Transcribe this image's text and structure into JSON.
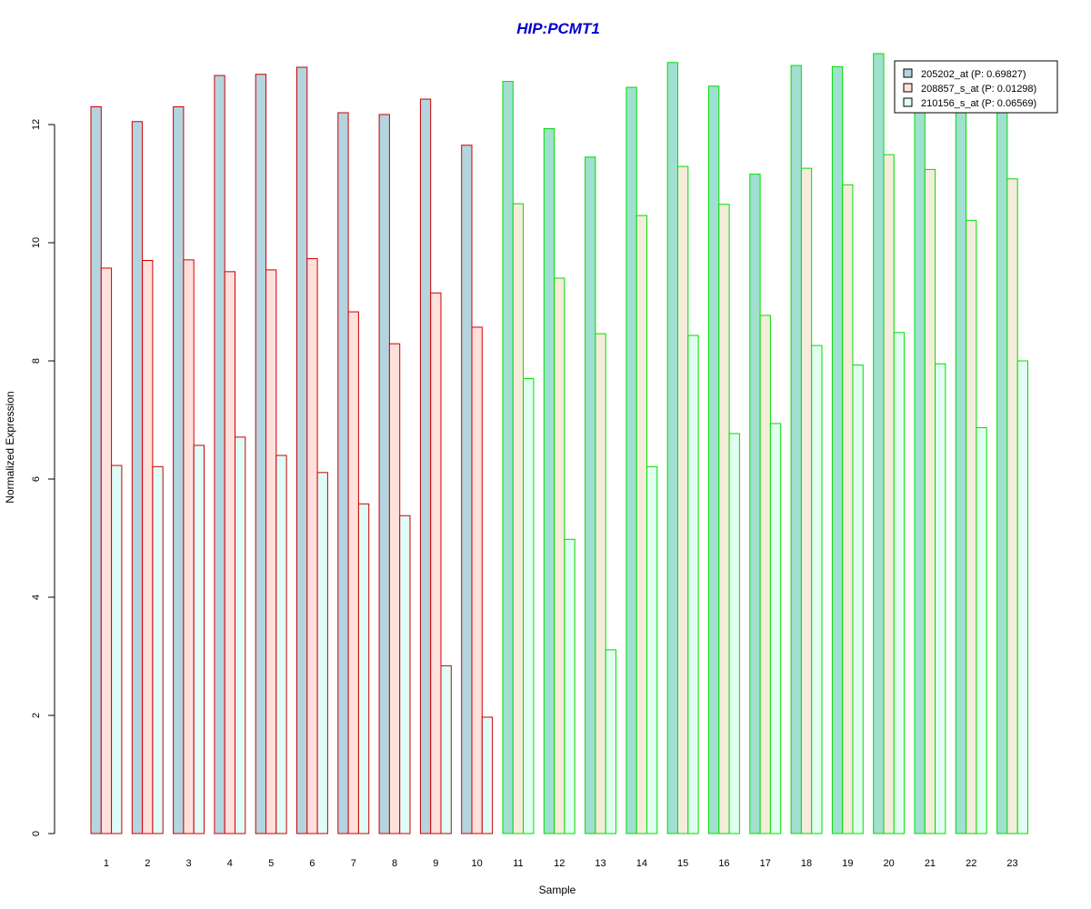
{
  "chart_data": {
    "type": "bar",
    "title": "HIP:PCMT1",
    "xlabel": "Sample",
    "ylabel": "Normalized Expression",
    "ylim": [
      0,
      13.2
    ],
    "yticks": [
      "0",
      "2",
      "4",
      "6",
      "8",
      "10",
      "12"
    ],
    "grid": false,
    "legend_position": "top-right",
    "categories": [
      "1",
      "2",
      "3",
      "4",
      "5",
      "6",
      "7",
      "8",
      "9",
      "10",
      "11",
      "12",
      "13",
      "14",
      "15",
      "16",
      "17",
      "18",
      "19",
      "20",
      "21",
      "22",
      "23"
    ],
    "group_outline_colors": [
      "#cc0000",
      "#cc0000",
      "#cc0000",
      "#cc0000",
      "#cc0000",
      "#cc0000",
      "#cc0000",
      "#cc0000",
      "#cc0000",
      "#cc0000",
      "#00dd00",
      "#00dd00",
      "#00dd00",
      "#00dd00",
      "#00dd00",
      "#00dd00",
      "#00dd00",
      "#00dd00",
      "#00dd00",
      "#00dd00",
      "#00dd00",
      "#00dd00",
      "#00dd00"
    ],
    "series": [
      {
        "name": "205202_at (P: 0.69827)",
        "fill_colors": [
          "#b4d4e0",
          "#a0e0d0"
        ],
        "values": [
          12.3,
          12.05,
          12.3,
          12.83,
          12.85,
          12.97,
          12.2,
          12.17,
          12.43,
          11.65,
          12.73,
          11.93,
          11.45,
          12.63,
          13.05,
          12.65,
          11.16,
          13.0,
          12.98,
          13.2,
          12.4,
          12.2,
          12.3
        ]
      },
      {
        "name": "208857_s_at (P: 0.01298)",
        "fill_colors": [
          "#ffe0dc",
          "#f5ecdc"
        ],
        "values": [
          9.57,
          9.7,
          9.71,
          9.51,
          9.54,
          9.73,
          8.83,
          8.29,
          9.15,
          8.57,
          10.66,
          9.4,
          8.46,
          10.46,
          11.29,
          10.65,
          8.77,
          11.26,
          10.98,
          11.49,
          11.24,
          10.38,
          11.08
        ]
      },
      {
        "name": "210156_s_at (P: 0.06569)",
        "fill_colors": [
          "#e0fcf8",
          "#e0fff0"
        ],
        "values": [
          6.23,
          6.21,
          6.57,
          6.71,
          6.4,
          6.11,
          5.58,
          5.38,
          2.84,
          1.97,
          7.7,
          4.98,
          3.11,
          6.21,
          8.43,
          6.77,
          6.94,
          8.26,
          7.93,
          8.48,
          7.95,
          6.87,
          8.0
        ]
      }
    ]
  }
}
